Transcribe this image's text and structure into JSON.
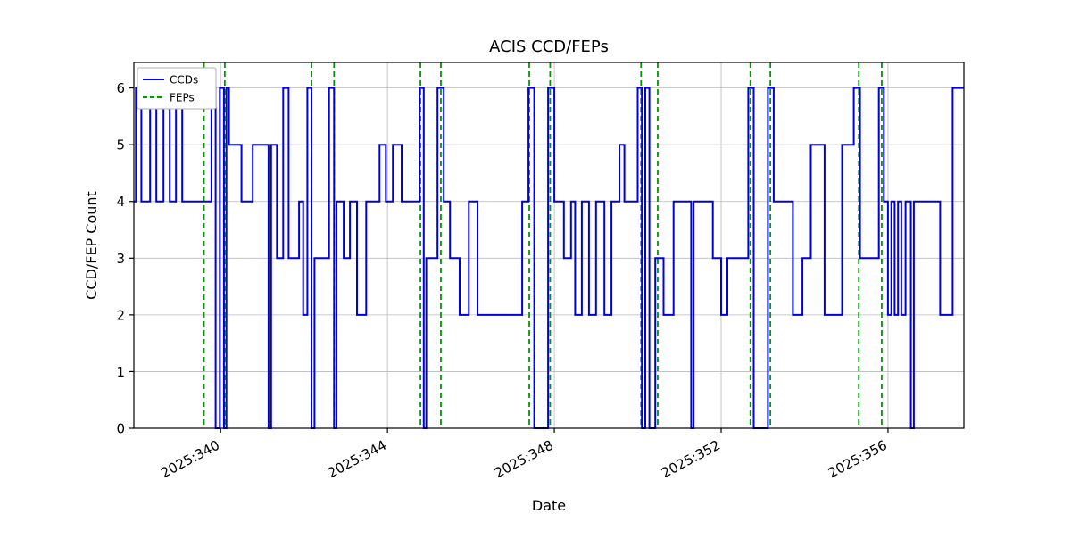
{
  "chart_data": {
    "type": "line",
    "title": "ACIS CCD/FEPs",
    "xlabel": "Date",
    "ylabel": "CCD/FEP Count",
    "xlim": [
      337.92,
      357.82
    ],
    "ylim": [
      0,
      6.45
    ],
    "grid": true,
    "legend_position": "upper-left",
    "colors": {
      "ccds_line": "#0000dd",
      "feps_line": "#009900",
      "grid": "#b8b8b8",
      "spine": "#000000",
      "legend_border": "#b0b0b0"
    },
    "xticks": [
      {
        "value": 340,
        "label": "2025:340"
      },
      {
        "value": 344,
        "label": "2025:344"
      },
      {
        "value": 348,
        "label": "2025:348"
      },
      {
        "value": 352,
        "label": "2025:352"
      },
      {
        "value": 356,
        "label": "2025:356"
      }
    ],
    "yticks": [
      {
        "value": 0,
        "label": "0"
      },
      {
        "value": 1,
        "label": "1"
      },
      {
        "value": 2,
        "label": "2"
      },
      {
        "value": 3,
        "label": "3"
      },
      {
        "value": 4,
        "label": "4"
      },
      {
        "value": 5,
        "label": "5"
      },
      {
        "value": 6,
        "label": "6"
      }
    ],
    "legend": [
      {
        "label": "CCDs",
        "color": "#0000dd",
        "style": "solid"
      },
      {
        "label": "FEPs",
        "color": "#009900",
        "style": "dashed"
      }
    ],
    "series": [
      {
        "name": "CCDs",
        "style": "step",
        "points": [
          [
            337.93,
            4
          ],
          [
            337.97,
            6
          ],
          [
            338.1,
            4
          ],
          [
            338.31,
            6
          ],
          [
            338.46,
            4
          ],
          [
            338.63,
            6
          ],
          [
            338.78,
            4
          ],
          [
            338.93,
            6
          ],
          [
            339.08,
            4
          ],
          [
            339.78,
            6
          ],
          [
            339.88,
            0
          ],
          [
            339.98,
            6
          ],
          [
            340.08,
            0
          ],
          [
            340.14,
            6
          ],
          [
            340.2,
            5
          ],
          [
            340.5,
            4
          ],
          [
            340.77,
            5
          ],
          [
            341.15,
            0
          ],
          [
            341.21,
            5
          ],
          [
            341.35,
            3
          ],
          [
            341.5,
            6
          ],
          [
            341.63,
            3
          ],
          [
            341.88,
            4
          ],
          [
            341.98,
            2
          ],
          [
            342.08,
            6
          ],
          [
            342.18,
            0
          ],
          [
            342.25,
            3
          ],
          [
            342.6,
            6
          ],
          [
            342.72,
            0
          ],
          [
            342.78,
            4
          ],
          [
            342.95,
            3
          ],
          [
            343.1,
            4
          ],
          [
            343.27,
            2
          ],
          [
            343.49,
            4
          ],
          [
            343.81,
            5
          ],
          [
            343.96,
            4
          ],
          [
            344.13,
            5
          ],
          [
            344.34,
            4
          ],
          [
            344.77,
            6
          ],
          [
            344.87,
            0
          ],
          [
            344.93,
            3
          ],
          [
            345.2,
            6
          ],
          [
            345.35,
            4
          ],
          [
            345.5,
            3
          ],
          [
            345.73,
            2
          ],
          [
            345.95,
            4
          ],
          [
            346.16,
            2
          ],
          [
            347.23,
            4
          ],
          [
            347.38,
            6
          ],
          [
            347.52,
            0
          ],
          [
            347.85,
            6
          ],
          [
            348.0,
            4
          ],
          [
            348.23,
            3
          ],
          [
            348.4,
            4
          ],
          [
            348.5,
            2
          ],
          [
            348.66,
            4
          ],
          [
            348.83,
            2
          ],
          [
            349.0,
            4
          ],
          [
            349.2,
            2
          ],
          [
            349.37,
            4
          ],
          [
            349.56,
            5
          ],
          [
            349.68,
            4
          ],
          [
            350.0,
            6
          ],
          [
            350.1,
            0
          ],
          [
            350.18,
            6
          ],
          [
            350.28,
            0
          ],
          [
            350.42,
            3
          ],
          [
            350.62,
            2
          ],
          [
            350.86,
            4
          ],
          [
            351.28,
            0
          ],
          [
            351.34,
            4
          ],
          [
            351.8,
            3
          ],
          [
            352.0,
            2
          ],
          [
            352.15,
            3
          ],
          [
            352.65,
            6
          ],
          [
            352.78,
            0
          ],
          [
            353.12,
            6
          ],
          [
            353.26,
            4
          ],
          [
            353.72,
            2
          ],
          [
            353.95,
            3
          ],
          [
            354.15,
            5
          ],
          [
            354.48,
            2
          ],
          [
            354.9,
            5
          ],
          [
            355.18,
            6
          ],
          [
            355.33,
            3
          ],
          [
            355.78,
            6
          ],
          [
            355.9,
            4
          ],
          [
            356.0,
            2
          ],
          [
            356.08,
            4
          ],
          [
            356.16,
            2
          ],
          [
            356.24,
            4
          ],
          [
            356.32,
            2
          ],
          [
            356.42,
            4
          ],
          [
            356.55,
            0
          ],
          [
            356.62,
            4
          ],
          [
            357.25,
            2
          ],
          [
            357.55,
            6
          ]
        ]
      },
      {
        "name": "FEPs",
        "style": "vertical-dashed-events",
        "events": [
          339.6,
          340.1,
          342.18,
          342.72,
          344.79,
          345.28,
          347.4,
          347.9,
          350.08,
          350.48,
          352.7,
          353.18,
          355.3,
          355.85
        ]
      }
    ]
  }
}
